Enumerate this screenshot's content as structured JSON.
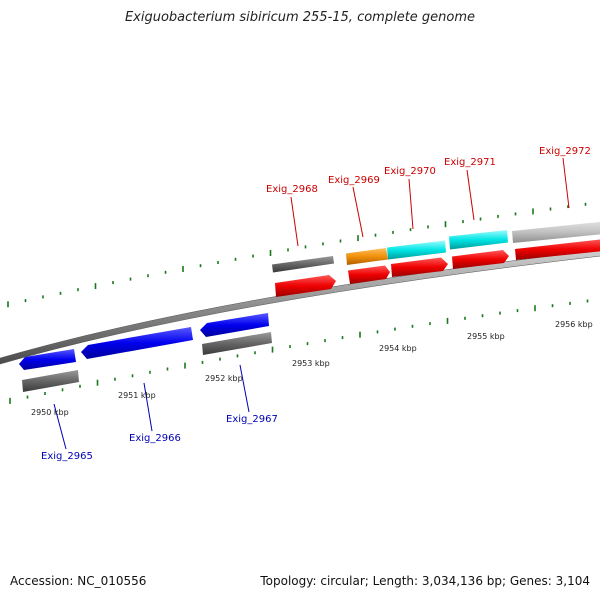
{
  "title": "Exiguobacterium sibiricum 255-15, complete genome",
  "footer": {
    "accession": "Accession: NC_010556",
    "summary": "Topology: circular; Length: 3,034,136 bp; Genes: 3,104"
  },
  "colors": {
    "background": "#ffffff",
    "backbone": "#8c8c8c",
    "tick": "#1a7a1a",
    "forward_label": "#cc0000",
    "reverse_label": "#0000b4",
    "cds_forward": "#ee0000",
    "cds_reverse": "#0000ee",
    "gene_grey": "#666666",
    "gene_light_grey": "#c0c0c0",
    "rrna_cyan": "#00e5e5",
    "trna_orange": "#f0900a"
  },
  "scale_labels": [
    "2950 kbp",
    "2951 kbp",
    "2952 kbp",
    "2953 kbp",
    "2954 kbp",
    "2955 kbp",
    "2956 kbp"
  ],
  "gene_labels": {
    "forward": [
      "Exig_2968",
      "Exig_2969",
      "Exig_2970",
      "Exig_2971",
      "Exig_2972"
    ],
    "reverse": [
      "Exig_2965",
      "Exig_2966",
      "Exig_2967"
    ]
  }
}
